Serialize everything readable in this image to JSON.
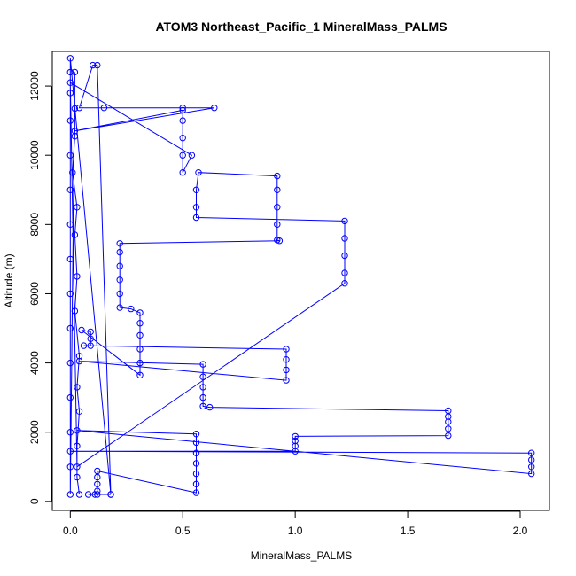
{
  "chart_data": {
    "type": "scatter",
    "title": "ATOM3 Northeast_Pacific_1 MineralMass_PALMS",
    "xlabel": "MineralMass_PALMS",
    "ylabel": "Altitude (m)",
    "xlim": [
      -0.08,
      2.13
    ],
    "ylim": [
      -260,
      13000
    ],
    "x_ticks": [
      0.0,
      0.5,
      1.0,
      1.5,
      2.0
    ],
    "x_tick_labels": [
      "0.0",
      "0.5",
      "1.0",
      "1.5",
      "2.0"
    ],
    "y_ticks": [
      0,
      2000,
      4000,
      6000,
      8000,
      10000,
      12000
    ],
    "y_tick_labels": [
      "0",
      "2000",
      "4000",
      "6000",
      "8000",
      "10000",
      "12000"
    ],
    "grid": false,
    "legend": "none",
    "color": "#0000ff",
    "series": [
      {
        "style": "points-and-lines",
        "points": [
          [
            0.18,
            200
          ],
          [
            0.12,
            200
          ],
          [
            0.08,
            200
          ],
          [
            0.11,
            200
          ],
          [
            0.12,
            300
          ],
          [
            0.12,
            500
          ],
          [
            0.12,
            700
          ],
          [
            0.12,
            880
          ],
          [
            0.56,
            250
          ],
          [
            0.56,
            500
          ],
          [
            0.56,
            800
          ],
          [
            0.56,
            1100
          ],
          [
            0.56,
            1400
          ],
          [
            0.56,
            1700
          ],
          [
            0.56,
            1950
          ],
          [
            0.03,
            2050
          ],
          [
            2.05,
            800
          ],
          [
            2.05,
            1000
          ],
          [
            2.05,
            1200
          ],
          [
            2.05,
            1400
          ],
          [
            0.0,
            1450
          ],
          [
            1.0,
            1450
          ],
          [
            1.0,
            1600
          ],
          [
            1.0,
            1750
          ],
          [
            1.0,
            1880
          ],
          [
            1.68,
            1900
          ],
          [
            1.68,
            2100
          ],
          [
            1.68,
            2300
          ],
          [
            1.68,
            2450
          ],
          [
            1.68,
            2620
          ],
          [
            0.62,
            2720
          ],
          [
            0.59,
            2750
          ],
          [
            0.59,
            3000
          ],
          [
            0.59,
            3300
          ],
          [
            0.59,
            3600
          ],
          [
            0.59,
            3960
          ],
          [
            0.04,
            4050
          ],
          [
            0.96,
            3500
          ],
          [
            0.96,
            3800
          ],
          [
            0.96,
            4100
          ],
          [
            0.96,
            4400
          ],
          [
            0.06,
            4500
          ],
          [
            0.09,
            4500
          ],
          [
            0.09,
            4700
          ],
          [
            0.09,
            4900
          ],
          [
            0.05,
            4950
          ],
          [
            0.31,
            3650
          ],
          [
            0.31,
            4000
          ],
          [
            0.31,
            4400
          ],
          [
            0.31,
            4800
          ],
          [
            0.31,
            5150
          ],
          [
            0.31,
            5450
          ],
          [
            0.27,
            5560
          ],
          [
            0.22,
            5600
          ],
          [
            0.22,
            6000
          ],
          [
            0.22,
            6400
          ],
          [
            0.22,
            6800
          ],
          [
            0.22,
            7200
          ],
          [
            0.22,
            7450
          ],
          [
            0.93,
            7530
          ],
          [
            0.92,
            7550
          ],
          [
            0.92,
            8000
          ],
          [
            0.92,
            8500
          ],
          [
            0.92,
            9000
          ],
          [
            0.92,
            9400
          ],
          [
            0.57,
            9500
          ],
          [
            0.56,
            9000
          ],
          [
            0.56,
            8500
          ],
          [
            0.56,
            8200
          ],
          [
            1.22,
            8100
          ],
          [
            1.22,
            7600
          ],
          [
            1.22,
            7100
          ],
          [
            1.22,
            6600
          ],
          [
            1.22,
            6300
          ],
          [
            0.03,
            1000
          ],
          [
            0.0,
            12100
          ],
          [
            0.54,
            10000
          ],
          [
            0.5,
            9500
          ],
          [
            0.5,
            10000
          ],
          [
            0.5,
            10500
          ],
          [
            0.5,
            11000
          ],
          [
            0.5,
            11300
          ],
          [
            0.02,
            10700
          ],
          [
            0.64,
            11370
          ],
          [
            0.5,
            11370
          ],
          [
            0.15,
            11370
          ],
          [
            0.04,
            11370
          ],
          [
            0.1,
            12600
          ],
          [
            0.12,
            12600
          ],
          [
            0.18,
            200
          ],
          [
            0.0,
            12800
          ],
          [
            0.0,
            12400
          ],
          [
            0.0,
            11800
          ],
          [
            0.0,
            11000
          ],
          [
            0.0,
            10000
          ],
          [
            0.0,
            9000
          ],
          [
            0.0,
            8000
          ],
          [
            0.0,
            7000
          ],
          [
            0.0,
            6000
          ],
          [
            0.0,
            5000
          ],
          [
            0.0,
            4000
          ],
          [
            0.0,
            3000
          ],
          [
            0.0,
            2000
          ],
          [
            0.0,
            1000
          ],
          [
            0.0,
            200
          ],
          [
            0.02,
            12400
          ],
          [
            0.02,
            11350
          ],
          [
            0.02,
            10550
          ],
          [
            0.01,
            9500
          ],
          [
            0.03,
            8500
          ],
          [
            0.02,
            7700
          ],
          [
            0.03,
            6500
          ],
          [
            0.02,
            5500
          ],
          [
            0.04,
            4200
          ],
          [
            0.03,
            3300
          ],
          [
            0.04,
            2600
          ],
          [
            0.03,
            1600
          ],
          [
            0.03,
            700
          ],
          [
            0.04,
            200
          ]
        ]
      }
    ]
  }
}
